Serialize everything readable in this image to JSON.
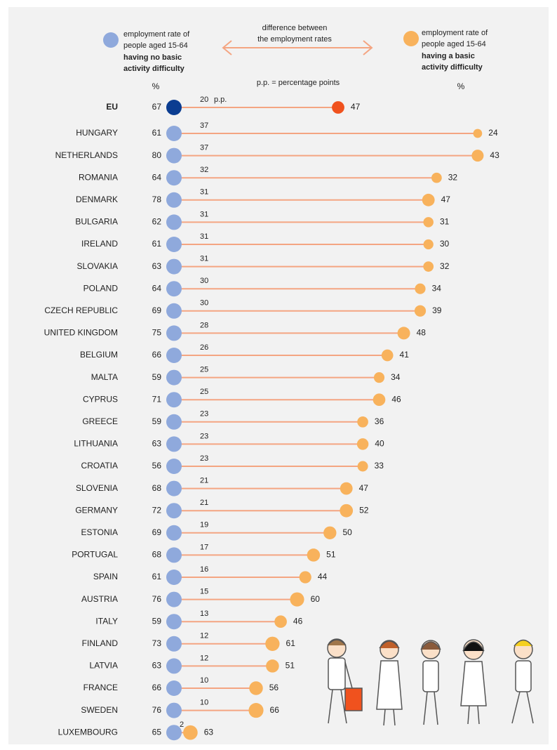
{
  "chart_data": {
    "type": "dumbbell",
    "categories": [
      "EU",
      "HUNGARY",
      "NETHERLANDS",
      "ROMANIA",
      "DENMARK",
      "BULGARIA",
      "IRELAND",
      "SLOVAKIA",
      "POLAND",
      "CZECH REPUBLIC",
      "UNITED KINGDOM",
      "BELGIUM",
      "MALTA",
      "CYPRUS",
      "GREECE",
      "LITHUANIA",
      "CROATIA",
      "SLOVENIA",
      "GERMANY",
      "ESTONIA",
      "PORTUGAL",
      "SPAIN",
      "AUSTRIA",
      "ITALY",
      "FINLAND",
      "LATVIA",
      "FRANCE",
      "SWEDEN",
      "LUXEMBOURG"
    ],
    "series": [
      {
        "name": [
          "having no basic",
          "activity difficulty"
        ],
        "description": [
          "employment rate of",
          "people aged 15-64"
        ],
        "color": "#8fa9dc",
        "highlight_color": "#0b3d91",
        "label_color": "#4a78c2",
        "values": [
          67,
          61,
          80,
          64,
          78,
          62,
          61,
          63,
          64,
          69,
          75,
          66,
          59,
          71,
          59,
          63,
          56,
          68,
          72,
          69,
          68,
          61,
          76,
          59,
          73,
          63,
          66,
          76,
          65
        ]
      },
      {
        "name": [
          "having a basic",
          "activity difficulty"
        ],
        "description": [
          "employment rate of",
          "people aged 15-64"
        ],
        "color": "#f8b25c",
        "highlight_color": "#f0521e",
        "label_color": "#f39b3a",
        "values": [
          47,
          24,
          43,
          32,
          47,
          31,
          30,
          32,
          34,
          39,
          48,
          41,
          34,
          46,
          36,
          40,
          33,
          47,
          52,
          50,
          51,
          44,
          60,
          46,
          61,
          51,
          56,
          66,
          63
        ]
      }
    ],
    "differences": {
      "label": [
        "difference between",
        "the employment rates"
      ],
      "unit": "p.p.",
      "color": "#f4a582",
      "values": [
        20,
        37,
        37,
        32,
        31,
        31,
        31,
        31,
        30,
        30,
        28,
        26,
        25,
        25,
        23,
        23,
        23,
        21,
        21,
        19,
        17,
        16,
        15,
        13,
        12,
        12,
        10,
        10,
        2
      ]
    },
    "unit_note": "p.p. = percentage points",
    "axis_unit": "%"
  }
}
